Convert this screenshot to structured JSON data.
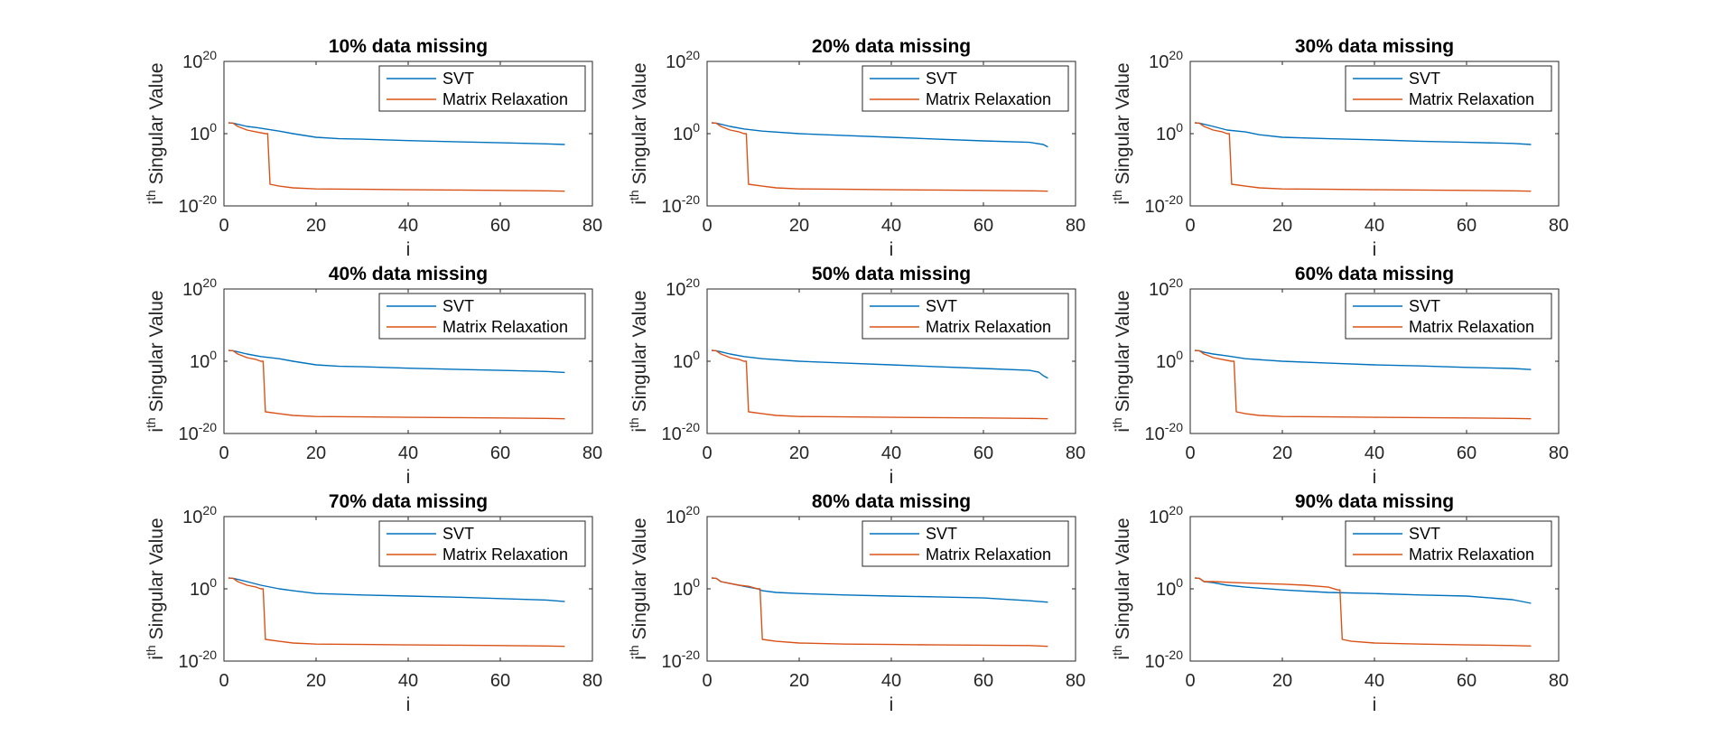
{
  "figure": {
    "rows": 3,
    "cols": 3
  },
  "chart_data": [
    {
      "type": "line",
      "title": "10% data missing",
      "xlabel": "i",
      "ylabel_base": "i",
      "ylabel_sup": "th",
      "ylabel_rest": " Singular Value",
      "xlim": [
        0,
        80
      ],
      "xticks": [
        0,
        20,
        40,
        60,
        80
      ],
      "ylim": [
        1e-20,
        1e+20
      ],
      "yscale": "log",
      "ytick_base": "10",
      "yticks": [
        {
          "exp": "20",
          "value": 1e+20
        },
        {
          "exp": "0",
          "value": 1
        },
        {
          "exp": "-20",
          "value": 1e-20
        }
      ],
      "legend_position": "top-right",
      "grid": false,
      "series": [
        {
          "name": "SVT",
          "color": "#0072BD",
          "x": [
            1,
            2,
            3,
            5,
            7,
            9,
            12,
            15,
            20,
            25,
            30,
            40,
            50,
            60,
            70,
            74
          ],
          "y": [
            1000.0,
            800.0,
            400.0,
            100.0,
            50.0,
            20.0,
            5,
            1,
            0.1,
            0.04,
            0.03,
            0.012,
            0.006,
            0.003,
            0.0015,
            0.001
          ]
        },
        {
          "name": "Matrix Relaxation",
          "color": "#D95319",
          "x": [
            1,
            2,
            3,
            5,
            7,
            9,
            9.5,
            10,
            12,
            15,
            20,
            30,
            40,
            50,
            60,
            70,
            74
          ],
          "y": [
            1000.0,
            800.0,
            100.0,
            10.0,
            3,
            1,
            1,
            1e-14,
            3e-15,
            1e-15,
            5e-16,
            4e-16,
            3e-16,
            2.5e-16,
            2e-16,
            1.5e-16,
            1.2e-16
          ]
        }
      ]
    },
    {
      "type": "line",
      "title": "20% data missing",
      "xlabel": "i",
      "ylabel_base": "i",
      "ylabel_sup": "th",
      "ylabel_rest": " Singular Value",
      "xlim": [
        0,
        80
      ],
      "xticks": [
        0,
        20,
        40,
        60,
        80
      ],
      "ylim": [
        1e-20,
        1e+20
      ],
      "yscale": "log",
      "ytick_base": "10",
      "yticks": [
        {
          "exp": "20",
          "value": 1e+20
        },
        {
          "exp": "0",
          "value": 1
        },
        {
          "exp": "-20",
          "value": 1e-20
        }
      ],
      "legend_position": "top-right",
      "grid": false,
      "series": [
        {
          "name": "SVT",
          "color": "#0072BD",
          "x": [
            1,
            2,
            3,
            5,
            8,
            12,
            20,
            30,
            40,
            50,
            60,
            70,
            73,
            74
          ],
          "y": [
            1000.0,
            800.0,
            400.0,
            100.0,
            20.0,
            5,
            1,
            0.3,
            0.1,
            0.03,
            0.01,
            0.004,
            0.001,
            0.0002
          ]
        },
        {
          "name": "Matrix Relaxation",
          "color": "#D95319",
          "x": [
            1,
            2,
            3,
            5,
            7,
            8,
            8.5,
            9,
            12,
            15,
            20,
            30,
            40,
            50,
            60,
            70,
            74
          ],
          "y": [
            1000.0,
            800.0,
            100.0,
            10.0,
            3,
            1,
            1,
            1e-14,
            3e-15,
            1e-15,
            5e-16,
            4e-16,
            3e-16,
            2.5e-16,
            2e-16,
            1.5e-16,
            1.2e-16
          ]
        }
      ]
    },
    {
      "type": "line",
      "title": "30% data missing",
      "xlabel": "i",
      "ylabel_base": "i",
      "ylabel_sup": "th",
      "ylabel_rest": " Singular Value",
      "xlim": [
        0,
        80
      ],
      "xticks": [
        0,
        20,
        40,
        60,
        80
      ],
      "ylim": [
        1e-20,
        1e+20
      ],
      "yscale": "log",
      "ytick_base": "10",
      "yticks": [
        {
          "exp": "20",
          "value": 1e+20
        },
        {
          "exp": "0",
          "value": 1
        },
        {
          "exp": "-20",
          "value": 1e-20
        }
      ],
      "legend_position": "top-right",
      "grid": false,
      "series": [
        {
          "name": "SVT",
          "color": "#0072BD",
          "x": [
            1,
            2,
            3,
            5,
            8,
            12,
            15,
            20,
            30,
            40,
            50,
            60,
            70,
            74
          ],
          "y": [
            1000.0,
            800.0,
            400.0,
            100.0,
            10.0,
            3,
            0.5,
            0.1,
            0.04,
            0.02,
            0.008,
            0.004,
            0.002,
            0.001
          ]
        },
        {
          "name": "Matrix Relaxation",
          "color": "#D95319",
          "x": [
            1,
            2,
            3,
            5,
            7,
            8,
            8.5,
            9,
            12,
            15,
            20,
            30,
            40,
            50,
            60,
            70,
            74
          ],
          "y": [
            1000.0,
            800.0,
            100.0,
            10.0,
            3,
            1,
            1,
            1e-14,
            3e-15,
            1e-15,
            5e-16,
            4e-16,
            3e-16,
            2.5e-16,
            2e-16,
            1.5e-16,
            1.2e-16
          ]
        }
      ]
    },
    {
      "type": "line",
      "title": "40% data missing",
      "xlabel": "i",
      "ylabel_base": "i",
      "ylabel_sup": "th",
      "ylabel_rest": " Singular Value",
      "xlim": [
        0,
        80
      ],
      "xticks": [
        0,
        20,
        40,
        60,
        80
      ],
      "ylim": [
        1e-20,
        1e+20
      ],
      "yscale": "log",
      "ytick_base": "10",
      "yticks": [
        {
          "exp": "20",
          "value": 1e+20
        },
        {
          "exp": "0",
          "value": 1
        },
        {
          "exp": "-20",
          "value": 1e-20
        }
      ],
      "legend_position": "top-right",
      "grid": false,
      "series": [
        {
          "name": "SVT",
          "color": "#0072BD",
          "x": [
            1,
            2,
            3,
            5,
            8,
            12,
            15,
            20,
            25,
            30,
            40,
            50,
            60,
            70,
            74
          ],
          "y": [
            1000.0,
            800.0,
            400.0,
            100.0,
            20.0,
            5,
            1,
            0.1,
            0.04,
            0.03,
            0.012,
            0.006,
            0.003,
            0.0015,
            0.0008
          ]
        },
        {
          "name": "Matrix Relaxation",
          "color": "#D95319",
          "x": [
            1,
            2,
            3,
            5,
            7,
            8,
            8.5,
            9,
            12,
            15,
            20,
            30,
            40,
            50,
            60,
            70,
            74
          ],
          "y": [
            1000.0,
            800.0,
            100.0,
            10.0,
            3,
            1,
            1,
            1e-14,
            3e-15,
            1e-15,
            5e-16,
            4e-16,
            3e-16,
            2.5e-16,
            2e-16,
            1.5e-16,
            1.2e-16
          ]
        }
      ]
    },
    {
      "type": "line",
      "title": "50% data missing",
      "xlabel": "i",
      "ylabel_base": "i",
      "ylabel_sup": "th",
      "ylabel_rest": " Singular Value",
      "xlim": [
        0,
        80
      ],
      "xticks": [
        0,
        20,
        40,
        60,
        80
      ],
      "ylim": [
        1e-20,
        1e+20
      ],
      "yscale": "log",
      "ytick_base": "10",
      "yticks": [
        {
          "exp": "20",
          "value": 1e+20
        },
        {
          "exp": "0",
          "value": 1
        },
        {
          "exp": "-20",
          "value": 1e-20
        }
      ],
      "legend_position": "top-right",
      "grid": false,
      "series": [
        {
          "name": "SVT",
          "color": "#0072BD",
          "x": [
            1,
            2,
            3,
            5,
            8,
            12,
            20,
            30,
            40,
            50,
            60,
            70,
            72,
            73,
            74
          ],
          "y": [
            1000.0,
            800.0,
            400.0,
            100.0,
            20.0,
            5,
            1,
            0.3,
            0.1,
            0.03,
            0.01,
            0.003,
            0.001,
            0.0001,
            2e-05
          ]
        },
        {
          "name": "Matrix Relaxation",
          "color": "#D95319",
          "x": [
            1,
            2,
            3,
            5,
            7,
            8,
            8.5,
            9,
            12,
            15,
            20,
            30,
            40,
            50,
            60,
            70,
            74
          ],
          "y": [
            1000.0,
            800.0,
            100.0,
            10.0,
            3,
            1,
            1,
            1e-14,
            3e-15,
            1e-15,
            5e-16,
            4e-16,
            3e-16,
            2.5e-16,
            2e-16,
            1.5e-16,
            1.2e-16
          ]
        }
      ]
    },
    {
      "type": "line",
      "title": "60% data missing",
      "xlabel": "i",
      "ylabel_base": "i",
      "ylabel_sup": "th",
      "ylabel_rest": " Singular Value",
      "xlim": [
        0,
        80
      ],
      "xticks": [
        0,
        20,
        40,
        60,
        80
      ],
      "ylim": [
        1e-20,
        1e+20
      ],
      "yscale": "log",
      "ytick_base": "10",
      "yticks": [
        {
          "exp": "20",
          "value": 1e+20
        },
        {
          "exp": "0",
          "value": 1
        },
        {
          "exp": "-20",
          "value": 1e-20
        }
      ],
      "legend_position": "top-right",
      "grid": false,
      "series": [
        {
          "name": "SVT",
          "color": "#0072BD",
          "x": [
            1,
            2,
            3,
            5,
            8,
            12,
            20,
            30,
            40,
            50,
            60,
            70,
            74
          ],
          "y": [
            1000.0,
            800.0,
            300.0,
            100.0,
            30.0,
            5,
            1,
            0.3,
            0.1,
            0.05,
            0.02,
            0.01,
            0.005
          ]
        },
        {
          "name": "Matrix Relaxation",
          "color": "#D95319",
          "x": [
            1,
            2,
            3,
            5,
            7,
            9,
            9.5,
            10,
            12,
            15,
            20,
            30,
            40,
            50,
            60,
            70,
            74
          ],
          "y": [
            1000.0,
            800.0,
            100.0,
            10.0,
            3,
            1,
            1,
            1e-14,
            3e-15,
            1e-15,
            5e-16,
            4e-16,
            3e-16,
            2.5e-16,
            2e-16,
            1.5e-16,
            1.2e-16
          ]
        }
      ]
    },
    {
      "type": "line",
      "title": "70% data missing",
      "xlabel": "i",
      "ylabel_base": "i",
      "ylabel_sup": "th",
      "ylabel_rest": " Singular Value",
      "xlim": [
        0,
        80
      ],
      "xticks": [
        0,
        20,
        40,
        60,
        80
      ],
      "ylim": [
        1e-20,
        1e+20
      ],
      "yscale": "log",
      "ytick_base": "10",
      "yticks": [
        {
          "exp": "20",
          "value": 1e+20
        },
        {
          "exp": "0",
          "value": 1
        },
        {
          "exp": "-20",
          "value": 1e-20
        }
      ],
      "legend_position": "top-right",
      "grid": false,
      "series": [
        {
          "name": "SVT",
          "color": "#0072BD",
          "x": [
            1,
            2,
            3,
            5,
            8,
            12,
            15,
            20,
            30,
            40,
            50,
            60,
            70,
            74
          ],
          "y": [
            1000.0,
            800.0,
            400.0,
            100.0,
            10.0,
            1,
            0.3,
            0.05,
            0.02,
            0.01,
            0.005,
            0.002,
            0.0008,
            0.0003
          ]
        },
        {
          "name": "Matrix Relaxation",
          "color": "#D95319",
          "x": [
            1,
            2,
            3,
            5,
            7,
            8,
            8.5,
            9,
            12,
            15,
            20,
            30,
            40,
            50,
            60,
            70,
            74
          ],
          "y": [
            1000.0,
            800.0,
            100.0,
            10.0,
            3,
            1,
            1,
            1e-14,
            3e-15,
            1e-15,
            5e-16,
            4e-16,
            3e-16,
            2.5e-16,
            2e-16,
            1.5e-16,
            1.2e-16
          ]
        }
      ]
    },
    {
      "type": "line",
      "title": "80% data missing",
      "xlabel": "i",
      "ylabel_base": "i",
      "ylabel_sup": "th",
      "ylabel_rest": " Singular Value",
      "xlim": [
        0,
        80
      ],
      "xticks": [
        0,
        20,
        40,
        60,
        80
      ],
      "ylim": [
        1e-20,
        1e+20
      ],
      "yscale": "log",
      "ytick_base": "10",
      "yticks": [
        {
          "exp": "20",
          "value": 1e+20
        },
        {
          "exp": "0",
          "value": 1
        },
        {
          "exp": "-20",
          "value": 1e-20
        }
      ],
      "legend_position": "top-right",
      "grid": false,
      "series": [
        {
          "name": "SVT",
          "color": "#0072BD",
          "x": [
            1,
            2,
            3,
            5,
            8,
            11,
            12,
            15,
            20,
            30,
            40,
            50,
            60,
            70,
            74
          ],
          "y": [
            1000.0,
            800.0,
            100.0,
            30.0,
            5,
            1,
            0.3,
            0.1,
            0.05,
            0.02,
            0.01,
            0.006,
            0.003,
            0.0005,
            0.0002
          ]
        },
        {
          "name": "Matrix Relaxation",
          "color": "#D95319",
          "x": [
            1,
            2,
            3,
            5,
            7,
            9,
            11,
            11.5,
            12,
            15,
            20,
            30,
            40,
            50,
            60,
            70,
            74
          ],
          "y": [
            1000.0,
            800.0,
            100.0,
            30.0,
            10.0,
            5,
            1,
            1,
            1e-14,
            3e-15,
            1e-15,
            5e-16,
            4e-16,
            3e-16,
            2.5e-16,
            2e-16,
            1.2e-16
          ]
        }
      ]
    },
    {
      "type": "line",
      "title": "90% data missing",
      "xlabel": "i",
      "ylabel_base": "i",
      "ylabel_sup": "th",
      "ylabel_rest": " Singular Value",
      "xlim": [
        0,
        80
      ],
      "xticks": [
        0,
        20,
        40,
        60,
        80
      ],
      "ylim": [
        1e-20,
        1e+20
      ],
      "yscale": "log",
      "ytick_base": "10",
      "yticks": [
        {
          "exp": "20",
          "value": 1e+20
        },
        {
          "exp": "0",
          "value": 1
        },
        {
          "exp": "-20",
          "value": 1e-20
        }
      ],
      "legend_position": "top-right",
      "grid": false,
      "series": [
        {
          "name": "SVT",
          "color": "#0072BD",
          "x": [
            1,
            2,
            3,
            5,
            8,
            12,
            20,
            30,
            40,
            50,
            60,
            70,
            74
          ],
          "y": [
            1000.0,
            800.0,
            100.0,
            50.0,
            10.0,
            3,
            0.5,
            0.1,
            0.05,
            0.02,
            0.01,
            0.001,
            0.0001
          ]
        },
        {
          "name": "Matrix Relaxation",
          "color": "#D95319",
          "x": [
            1,
            2,
            3,
            5,
            10,
            15,
            20,
            25,
            30,
            32,
            32.5,
            33,
            35,
            40,
            50,
            60,
            70,
            74
          ],
          "y": [
            1000.0,
            800.0,
            100.0,
            100.0,
            50.0,
            30.0,
            20.0,
            10.0,
            3,
            0.5,
            0.5,
            1e-14,
            3e-15,
            1e-15,
            5e-16,
            3e-16,
            2e-16,
            1.5e-16
          ]
        }
      ]
    }
  ]
}
